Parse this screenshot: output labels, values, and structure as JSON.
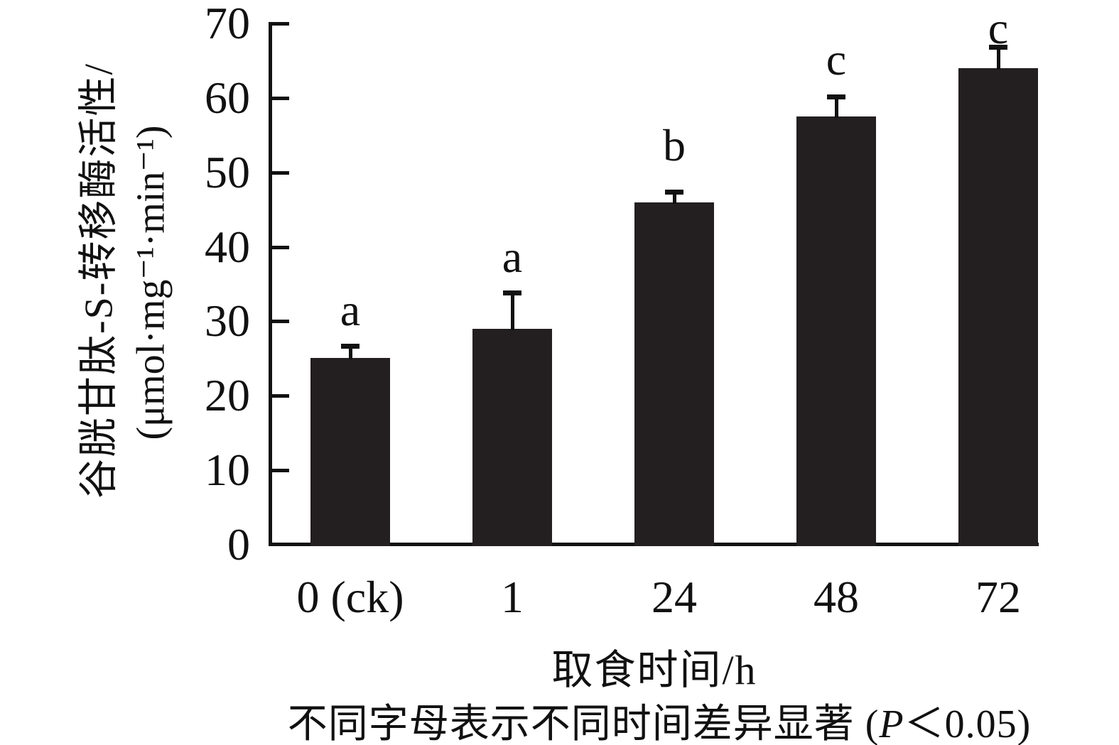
{
  "chart_data": {
    "type": "bar",
    "categories": [
      "0 (ck)",
      "1",
      "24",
      "48",
      "72"
    ],
    "values": [
      25.1,
      29,
      46,
      57.5,
      64
    ],
    "errors": [
      1.5,
      4.8,
      1.3,
      2.6,
      2.8
    ],
    "sig_letters": [
      "a",
      "a",
      "b",
      "c",
      "c"
    ],
    "xlabel": "取食时间/h",
    "ylabel_line1": "谷胱甘肽-S-转移酶活性/",
    "ylabel_line2": "(μmol·mg⁻¹·min⁻¹)",
    "ylim": [
      0,
      70
    ],
    "yticks": [
      0,
      10,
      20,
      30,
      40,
      50,
      60,
      70
    ],
    "grid": false,
    "legend": "none",
    "bar_color": "#231f20",
    "axis_color": "#111111",
    "caption": {
      "prefix": "不同字母表示不同时间差异显著 (",
      "italic": "P",
      "suffix": "＜0.05)"
    }
  }
}
